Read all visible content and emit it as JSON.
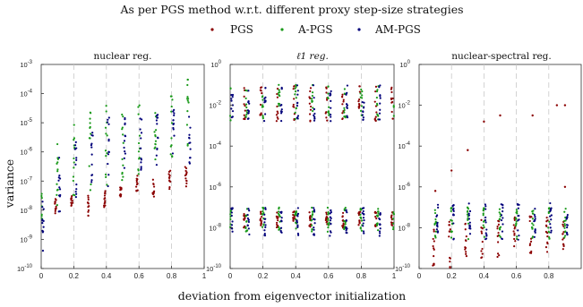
{
  "figure": {
    "title": "As per PGS method w.r.t. different proxy step-size strategies",
    "xlabel": "deviation from eigenvector initialization",
    "ylabel": "variance"
  },
  "legend": {
    "placement": "top-center",
    "entries": [
      {
        "name": "PGS",
        "color": "#8b0000"
      },
      {
        "name": "A-PGS",
        "color": "#1a9a1a"
      },
      {
        "name": "AM-PGS",
        "color": "#00007a"
      }
    ]
  },
  "chart_data": [
    {
      "type": "scatter",
      "title": "nuclear reg.",
      "y_scale": "log",
      "ylim_exponents": [
        -10,
        -3
      ],
      "ytick_labels": [
        "10-10",
        "10-9",
        "10-8",
        "10-7",
        "10-6",
        "10-5",
        "10-4",
        "10-3"
      ],
      "xlim": [
        0,
        1
      ],
      "xtick_labels": [
        "0",
        "0.2",
        "0.4",
        "0.6",
        "0.8",
        "1"
      ],
      "grid": "vertical dashed",
      "series": [
        {
          "name": "PGS",
          "x": [
            0,
            0.1,
            0.2,
            0.3,
            0.4,
            0.5,
            0.6,
            0.7,
            0.8,
            0.9
          ],
          "log10_y_ranges": [
            [
              -8.8,
              -8.0
            ],
            [
              -8.2,
              -7.6
            ],
            [
              -8.0,
              -7.4
            ],
            [
              -8.2,
              -7.5
            ],
            [
              -7.9,
              -7.2
            ],
            [
              -7.7,
              -7.0
            ],
            [
              -7.4,
              -6.8
            ],
            [
              -7.6,
              -6.9
            ],
            [
              -7.3,
              -6.6
            ],
            [
              -7.2,
              -6.5
            ]
          ]
        },
        {
          "name": "A-PGS",
          "x": [
            0,
            0.1,
            0.2,
            0.3,
            0.4,
            0.5,
            0.6,
            0.7,
            0.8,
            0.9
          ],
          "log10_y_ranges": [
            [
              -8.6,
              -7.2
            ],
            [
              -8.0,
              -5.2
            ],
            [
              -7.6,
              -5.0
            ],
            [
              -7.4,
              -4.6
            ],
            [
              -7.2,
              -4.4
            ],
            [
              -7.0,
              -4.3
            ],
            [
              -6.8,
              -4.2
            ],
            [
              -6.6,
              -4.2
            ],
            [
              -6.5,
              -4.0
            ],
            [
              -6.4,
              -3.4
            ]
          ]
        },
        {
          "name": "AM-PGS",
          "x": [
            0,
            0.1,
            0.2,
            0.3,
            0.4,
            0.5,
            0.6,
            0.7,
            0.8,
            0.9
          ],
          "log10_y_ranges": [
            [
              -9.4,
              -7.6
            ],
            [
              -8.2,
              -6.0
            ],
            [
              -7.8,
              -5.4
            ],
            [
              -7.4,
              -5.2
            ],
            [
              -7.2,
              -4.8
            ],
            [
              -7.0,
              -4.8
            ],
            [
              -6.8,
              -4.7
            ],
            [
              -6.6,
              -4.6
            ],
            [
              -6.5,
              -4.5
            ],
            [
              -6.4,
              -4.6
            ]
          ]
        }
      ]
    },
    {
      "type": "scatter",
      "title": "ℓ1 reg.",
      "y_scale": "log",
      "ylim_exponents": [
        -10,
        0
      ],
      "ytick_labels": [
        "10-10",
        "10-8",
        "10-6",
        "10-4",
        "10-2",
        "100"
      ],
      "xlim": [
        0,
        1
      ],
      "xtick_labels": [
        "0",
        "0.2",
        "0.4",
        "0.6",
        "0.8",
        "1"
      ],
      "grid": "vertical dashed",
      "series": [
        {
          "name": "PGS",
          "x": [
            0,
            0.1,
            0.2,
            0.3,
            0.4,
            0.5,
            0.6,
            0.7,
            0.8,
            0.9,
            1.0
          ],
          "log10_y_ranges": [
            [
              -8.0,
              -7.2
            ],
            [
              -8.0,
              -7.2
            ],
            [
              -8.0,
              -7.2
            ],
            [
              -8.0,
              -7.2
            ],
            [
              -8.0,
              -7.2
            ],
            [
              -8.0,
              -7.2
            ],
            [
              -8.0,
              -7.2
            ],
            [
              -8.0,
              -7.2
            ],
            [
              -8.0,
              -7.2
            ],
            [
              -8.0,
              -7.2
            ],
            [
              -8.0,
              -7.2
            ]
          ],
          "upper_cluster_log10_y": [
            -2.8,
            -1.0
          ]
        },
        {
          "name": "A-PGS",
          "x": [
            0,
            0.1,
            0.2,
            0.3,
            0.4,
            0.5,
            0.6,
            0.7,
            0.8,
            0.9,
            1.0
          ],
          "log10_y_ranges": [
            [
              -8.2,
              -7.0
            ],
            [
              -8.2,
              -7.0
            ],
            [
              -8.2,
              -7.0
            ],
            [
              -8.2,
              -7.0
            ],
            [
              -8.2,
              -7.0
            ],
            [
              -8.2,
              -7.0
            ],
            [
              -8.2,
              -7.0
            ],
            [
              -8.2,
              -7.0
            ],
            [
              -8.2,
              -7.0
            ],
            [
              -8.2,
              -7.0
            ],
            [
              -8.2,
              -7.0
            ]
          ],
          "upper_cluster_log10_y": [
            -2.8,
            -1.0
          ]
        },
        {
          "name": "AM-PGS",
          "x": [
            0,
            0.1,
            0.2,
            0.3,
            0.4,
            0.5,
            0.6,
            0.7,
            0.8,
            0.9,
            1.0
          ],
          "log10_y_ranges": [
            [
              -8.4,
              -7.0
            ],
            [
              -8.4,
              -7.0
            ],
            [
              -8.4,
              -7.0
            ],
            [
              -8.4,
              -7.0
            ],
            [
              -8.4,
              -7.0
            ],
            [
              -8.4,
              -7.0
            ],
            [
              -8.4,
              -7.0
            ],
            [
              -8.4,
              -7.0
            ],
            [
              -8.4,
              -7.0
            ],
            [
              -8.4,
              -7.0
            ],
            [
              -8.4,
              -7.0
            ]
          ],
          "upper_cluster_log10_y": [
            -2.8,
            -1.0
          ]
        }
      ]
    },
    {
      "type": "scatter",
      "title": "nuclear-spectral reg.",
      "y_scale": "log",
      "ylim_exponents": [
        -10,
        0
      ],
      "ytick_labels": [
        "10-10",
        "10-8",
        "10-6",
        "10-4",
        "10-2",
        "100"
      ],
      "xlim": [
        0,
        1
      ],
      "xtick_labels": [
        "0",
        "0.2",
        "0.4",
        "0.6",
        "0.8"
      ],
      "grid": "vertical dashed",
      "series": [
        {
          "name": "PGS",
          "x": [
            0.1,
            0.2,
            0.3,
            0.4,
            0.5,
            0.6,
            0.7,
            0.8,
            0.9
          ],
          "log10_y_ranges": [
            [
              -10.0,
              -8.0
            ],
            [
              -10.0,
              -7.6
            ],
            [
              -9.8,
              -7.6
            ],
            [
              -9.6,
              -7.6
            ],
            [
              -9.6,
              -7.6
            ],
            [
              -9.4,
              -7.4
            ],
            [
              -9.4,
              -7.4
            ],
            [
              -9.2,
              -7.4
            ],
            [
              -9.2,
              -7.4
            ]
          ],
          "outliers_log10_y": [
            [
              0.1,
              -6.2
            ],
            [
              0.2,
              -5.2
            ],
            [
              0.3,
              -4.2
            ],
            [
              0.4,
              -2.8
            ],
            [
              0.5,
              -2.5
            ],
            [
              0.7,
              -2.5
            ],
            [
              0.85,
              -2.0
            ],
            [
              0.9,
              -2.0
            ],
            [
              0.9,
              -6.0
            ]
          ]
        },
        {
          "name": "A-PGS",
          "x": [
            0.1,
            0.2,
            0.3,
            0.4,
            0.5,
            0.6,
            0.7,
            0.8,
            0.9
          ],
          "log10_y_ranges": [
            [
              -8.6,
              -7.0
            ],
            [
              -8.6,
              -7.0
            ],
            [
              -8.6,
              -7.0
            ],
            [
              -8.6,
              -7.0
            ],
            [
              -8.6,
              -7.0
            ],
            [
              -8.6,
              -7.0
            ],
            [
              -8.6,
              -7.0
            ],
            [
              -8.6,
              -7.0
            ],
            [
              -8.6,
              -7.0
            ]
          ]
        },
        {
          "name": "AM-PGS",
          "x": [
            0.1,
            0.2,
            0.3,
            0.4,
            0.5,
            0.6,
            0.7,
            0.8,
            0.9
          ],
          "log10_y_ranges": [
            [
              -8.6,
              -6.8
            ],
            [
              -8.6,
              -6.8
            ],
            [
              -8.6,
              -6.8
            ],
            [
              -8.6,
              -6.8
            ],
            [
              -8.6,
              -6.8
            ],
            [
              -8.6,
              -6.8
            ],
            [
              -8.6,
              -6.8
            ],
            [
              -8.6,
              -6.8
            ],
            [
              -8.6,
              -6.8
            ]
          ]
        }
      ]
    }
  ]
}
